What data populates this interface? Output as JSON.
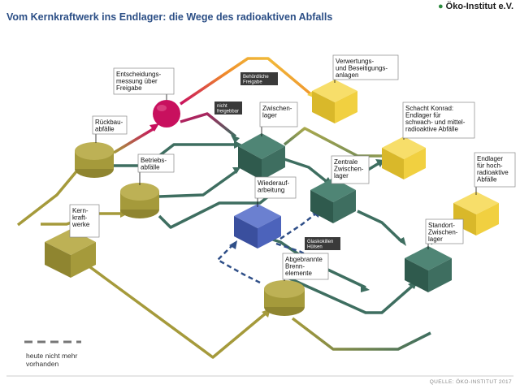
{
  "title": "Vom Kernkraftwerk ins Endlager: die Wege des radioaktiven Abfalls",
  "logo": "Öko-Institut e.V.",
  "source": "QUELLE: ÖKO-INSTITUT 2017",
  "legend": {
    "text": "heute nicht mehr vorhanden"
  },
  "colors": {
    "olive": "#a59a3b",
    "green": "#3e6e60",
    "yellow": "#f1d040",
    "blue": "#4c63bb",
    "magenta": "#c8105e"
  },
  "nodes": {
    "kernkraftwerke": "Kern-\nkraft-\nwerke",
    "rueckbauabfaelle": "Rückbau-\nabfälle",
    "betriebsabfaelle": "Betriebs-\nabfälle",
    "entscheidungsmessung": "Entscheidungs-\nmessung über\nFreigabe",
    "zwischenlager": "Zwischen-\nlager",
    "verwertung": "Verwertungs-\nund Beseitigungs-\nanlagen",
    "wiederaufarbeitung": "Wiederauf-\narbeitung",
    "zentrale_zwischenlager": "Zentrale\nZwischen-\nlager",
    "schacht_konrad": "Schacht Konrad:\nEndlager für\nschwach- und mittel-\nradioaktive Abfälle",
    "endlager_hochradioaktiv": "Endlager\nfür hoch-\nradioaktive\nAbfälle",
    "standort_zwischenlager": "Standort-\nZwischen-\nlager",
    "abgebrannte_brennelemente": "Abgebrannte\nBrenn-\nelemente"
  },
  "tags": {
    "behoerdliche_freigabe": "Behördliche\nFreigabe",
    "nicht_freigebbar": "nicht\nfreigebbar",
    "glaskokillen": "Glaskokillen\nHülsen"
  }
}
